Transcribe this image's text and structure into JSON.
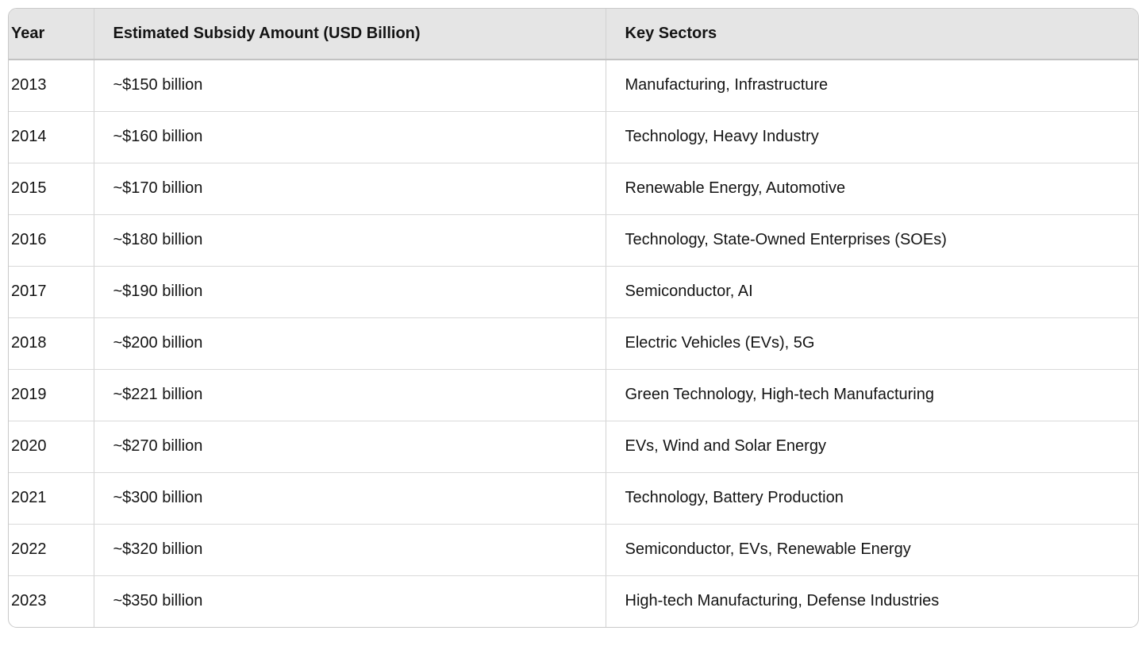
{
  "theme": {
    "page_background": "#ffffff",
    "header_bg": "#e5e5e5",
    "outer_border": "#c9c9c9",
    "header_divider": "#c2c2c2",
    "row_divider": "#d9d9d9",
    "column_divider": "#d2d2d2",
    "text_color": "#141414"
  },
  "table": {
    "headers": {
      "year": "Year",
      "amount": "Estimated Subsidy Amount (USD Billion)",
      "sectors": "Key Sectors"
    },
    "rows": [
      {
        "year": "2013",
        "amount": "~$150 billion",
        "sectors": "Manufacturing, Infrastructure"
      },
      {
        "year": "2014",
        "amount": "~$160 billion",
        "sectors": "Technology, Heavy Industry"
      },
      {
        "year": "2015",
        "amount": "~$170 billion",
        "sectors": "Renewable Energy, Automotive"
      },
      {
        "year": "2016",
        "amount": "~$180 billion",
        "sectors": "Technology, State-Owned Enterprises (SOEs)"
      },
      {
        "year": "2017",
        "amount": "~$190 billion",
        "sectors": "Semiconductor, AI"
      },
      {
        "year": "2018",
        "amount": "~$200 billion",
        "sectors": "Electric Vehicles (EVs), 5G"
      },
      {
        "year": "2019",
        "amount": "~$221 billion",
        "sectors": "Green Technology, High-tech Manufacturing"
      },
      {
        "year": "2020",
        "amount": "~$270 billion",
        "sectors": "EVs, Wind and Solar Energy"
      },
      {
        "year": "2021",
        "amount": "~$300 billion",
        "sectors": "Technology, Battery Production"
      },
      {
        "year": "2022",
        "amount": "~$320 billion",
        "sectors": "Semiconductor, EVs, Renewable Energy"
      },
      {
        "year": "2023",
        "amount": "~$350 billion",
        "sectors": "High-tech Manufacturing, Defense Industries"
      }
    ]
  },
  "chart_data": {
    "type": "table",
    "columns": [
      "Year",
      "Estimated Subsidy Amount (USD Billion)",
      "Key Sectors"
    ],
    "rows": [
      [
        "2013",
        "~$150 billion",
        "Manufacturing, Infrastructure"
      ],
      [
        "2014",
        "~$160 billion",
        "Technology, Heavy Industry"
      ],
      [
        "2015",
        "~$170 billion",
        "Renewable Energy, Automotive"
      ],
      [
        "2016",
        "~$180 billion",
        "Technology, State-Owned Enterprises (SOEs)"
      ],
      [
        "2017",
        "~$190 billion",
        "Semiconductor, AI"
      ],
      [
        "2018",
        "~$200 billion",
        "Electric Vehicles (EVs), 5G"
      ],
      [
        "2019",
        "~$221 billion",
        "Green Technology, High-tech Manufacturing"
      ],
      [
        "2020",
        "~$270 billion",
        "EVs, Wind and Solar Energy"
      ],
      [
        "2021",
        "~$300 billion",
        "Technology, Battery Production"
      ],
      [
        "2022",
        "~$320 billion",
        "Semiconductor, EVs, Renewable Energy"
      ],
      [
        "2023",
        "~$350 billion",
        "High-tech Manufacturing, Defense Industries"
      ]
    ],
    "years": [
      2013,
      2014,
      2015,
      2016,
      2017,
      2018,
      2019,
      2020,
      2021,
      2022,
      2023
    ],
    "subsidy_values_usd_billion": [
      150,
      160,
      170,
      180,
      190,
      200,
      221,
      270,
      300,
      320,
      350
    ]
  }
}
